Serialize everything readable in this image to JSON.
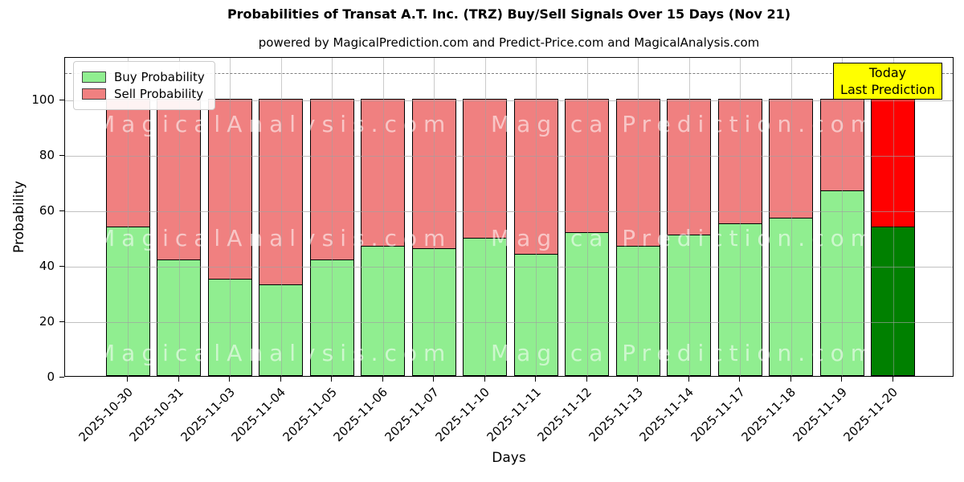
{
  "title": "Probabilities of Transat A.T. Inc. (TRZ) Buy/Sell Signals Over 15 Days (Nov 21)",
  "subtitle": "powered by MagicalPrediction.com and Predict-Price.com and MagicalAnalysis.com",
  "legend": {
    "buy_label": "Buy Probability",
    "sell_label": "Sell Probability"
  },
  "annotation": {
    "line1": "Today",
    "line2": "Last Prediction",
    "bg_color": "#ffff00"
  },
  "axes": {
    "xlabel": "Days",
    "ylabel": "Probability",
    "yticks": [
      0,
      20,
      40,
      60,
      80,
      100
    ],
    "ylim": [
      0,
      115.4
    ],
    "dashed_line_y": 110
  },
  "watermarks": [
    "MagicalAnalysis.com",
    "MagicalPrediction.com"
  ],
  "colors": {
    "buy": "#90ee90",
    "sell": "#f08080",
    "buy_today": "#008000",
    "sell_today": "#ff0000",
    "grid": "#a0a0a0",
    "dashed_line": "#7f7f7f"
  },
  "chart_data": {
    "type": "bar",
    "stacked": true,
    "title": "Probabilities of Transat A.T. Inc. (TRZ) Buy/Sell Signals Over 15 Days (Nov 21)",
    "xlabel": "Days",
    "ylabel": "Probability",
    "ylim": [
      0,
      115.4
    ],
    "grid": true,
    "legend_position": "upper left",
    "categories": [
      "2025-10-30",
      "2025-10-31",
      "2025-11-03",
      "2025-11-04",
      "2025-11-05",
      "2025-11-06",
      "2025-11-07",
      "2025-11-10",
      "2025-11-11",
      "2025-11-12",
      "2025-11-13",
      "2025-11-14",
      "2025-11-17",
      "2025-11-18",
      "2025-11-19",
      "2025-11-20"
    ],
    "series": [
      {
        "name": "Buy Probability",
        "values": [
          54,
          42,
          35,
          33,
          42,
          47,
          46,
          50,
          44,
          52,
          47,
          51,
          55,
          57,
          67,
          54
        ]
      },
      {
        "name": "Sell Probability",
        "values": [
          46,
          58,
          65,
          67,
          58,
          53,
          54,
          50,
          56,
          48,
          53,
          49,
          45,
          43,
          33,
          46
        ]
      }
    ],
    "annotations": [
      {
        "text": "Today\nLast Prediction",
        "target_category": "2025-11-20"
      }
    ],
    "dashed_reference_line": 110
  }
}
